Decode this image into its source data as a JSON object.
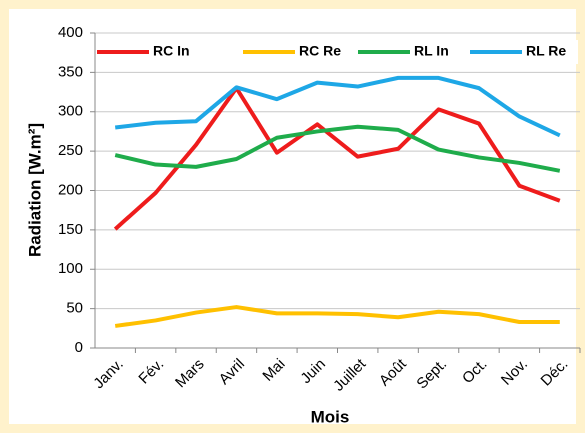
{
  "chart_data": {
    "type": "line",
    "x_label": "Mois",
    "y_label": "Radiation [W.m²]",
    "categories": [
      "Janv.",
      "Fév.",
      "Mars",
      "Avril",
      "Mai",
      "Juin",
      "Juillet",
      "Août",
      "Sept.",
      "Oct.",
      "Nov.",
      "Déc."
    ],
    "series": [
      {
        "name": "RC In",
        "color": "#ee1c1c",
        "values": [
          151,
          197,
          258,
          330,
          248,
          284,
          243,
          253,
          303,
          285,
          206,
          187
        ]
      },
      {
        "name": "RC Re",
        "color": "#ffc000",
        "values": [
          28,
          35,
          45,
          52,
          44,
          44,
          43,
          39,
          46,
          43,
          33,
          33
        ]
      },
      {
        "name": "RL In",
        "color": "#1fac4b",
        "values": [
          245,
          233,
          230,
          240,
          267,
          275,
          281,
          277,
          252,
          242,
          235,
          225
        ]
      },
      {
        "name": "RL Re",
        "color": "#1ea7e6",
        "values": [
          280,
          286,
          288,
          331,
          316,
          337,
          332,
          343,
          343,
          330,
          294,
          270
        ]
      }
    ],
    "ylim": [
      0,
      400
    ],
    "yticks": [
      0,
      50,
      100,
      150,
      200,
      250,
      300,
      350,
      400
    ],
    "grid": true,
    "legend": "top"
  }
}
